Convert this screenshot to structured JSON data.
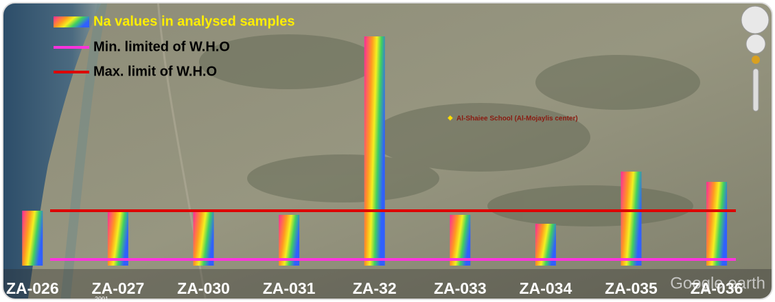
{
  "chart_data": {
    "type": "bar",
    "categories": [
      "ZA-026",
      "ZA-027",
      "ZA-030",
      "ZA-031",
      "ZA-32",
      "ZA-033",
      "ZA-034",
      "ZA-035",
      "ZA-036"
    ],
    "series": [
      {
        "name": "Na values in analysed samples",
        "values": [
          80,
          78,
          78,
          74,
          334,
          74,
          61,
          137,
          122
        ]
      }
    ],
    "reference_lines": [
      {
        "name": "Min. limited of W.H.O",
        "color": "#ff33dd",
        "value": 9
      },
      {
        "name": "Max. limit of W.H.O",
        "color": "#dd0000",
        "value": 80
      }
    ],
    "ylim": [
      0,
      340
    ]
  },
  "map": {
    "place_label": "Al-Shaiee School (Al-Mojaylis center)",
    "watermark": "Google earth",
    "year": "2001"
  }
}
